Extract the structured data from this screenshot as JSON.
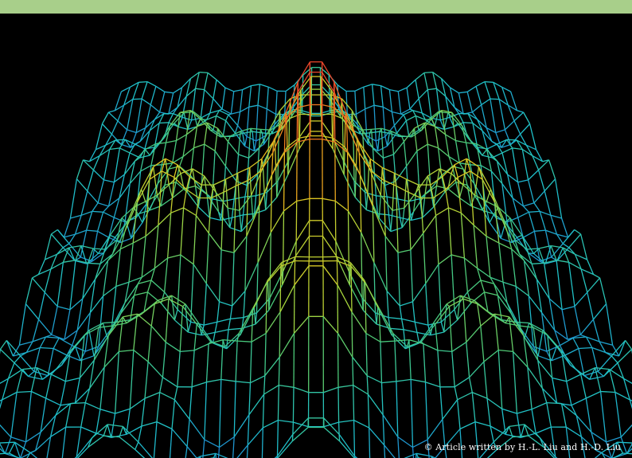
{
  "credit": {
    "text": "© Article written by H.-L. Liu and H.-D. Liu"
  },
  "colors": {
    "top_bar": "#a8cf8a",
    "background": "#000000",
    "credit_text": "#ffffff",
    "colormap": [
      "#2a3aa8",
      "#1f7fd0",
      "#1fc1c9",
      "#49c97a",
      "#a9d63b",
      "#e6c21e",
      "#ef7f1f",
      "#e8452a"
    ]
  }
}
